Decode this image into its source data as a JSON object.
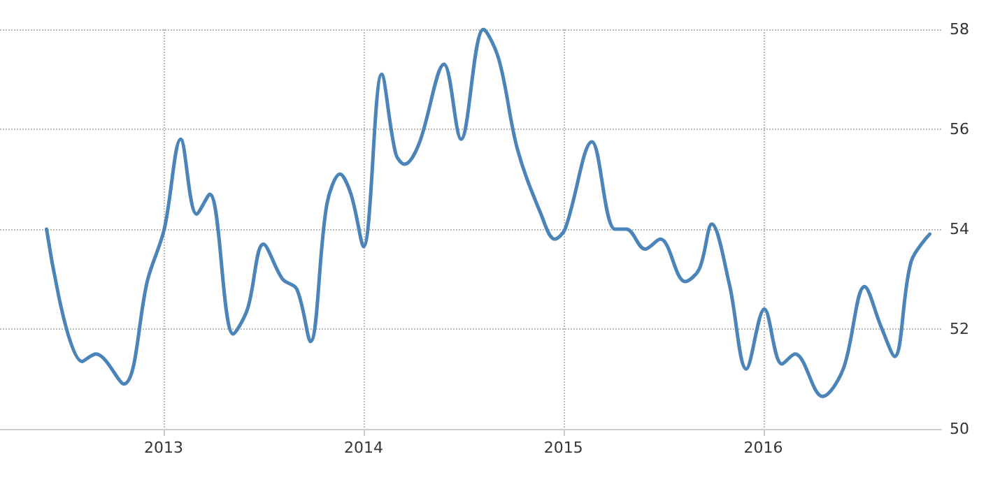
{
  "chart_data": {
    "type": "line",
    "x": [
      "2012-06-01",
      "2012-08-05",
      "2012-08-30",
      "2012-10-20",
      "2012-12-03",
      "2013-01-02",
      "2013-02-01",
      "2013-03-02",
      "2013-03-26",
      "2013-05-08",
      "2013-06-03",
      "2013-07-02",
      "2013-08-06",
      "2013-09-01",
      "2013-09-26",
      "2013-10-26",
      "2013-11-19",
      "2013-12-09",
      "2014-01-01",
      "2014-02-03",
      "2014-03-01",
      "2014-03-17",
      "2014-04-12",
      "2014-05-28",
      "2014-06-28",
      "2014-08-08",
      "2014-09-05",
      "2014-10-09",
      "2014-11-21",
      "2014-12-16",
      "2015-01-04",
      "2015-02-22",
      "2015-04-05",
      "2015-04-26",
      "2015-05-30",
      "2015-06-27",
      "2015-08-11",
      "2015-09-06",
      "2015-09-29",
      "2015-10-31",
      "2015-12-01",
      "2016-01-03",
      "2016-02-04",
      "2016-02-28",
      "2016-04-18",
      "2016-05-26",
      "2016-07-04",
      "2016-08-03",
      "2016-08-28",
      "2016-09-27",
      "2016-10-31"
    ],
    "series": [
      {
        "color": "#4a84b8",
        "values": [
          54.0,
          51.35,
          51.5,
          50.9,
          53.0,
          54.0,
          55.8,
          54.3,
          54.7,
          51.9,
          52.4,
          53.7,
          53.0,
          52.8,
          51.75,
          54.5,
          55.1,
          54.7,
          53.65,
          57.1,
          55.5,
          55.3,
          55.7,
          57.3,
          55.8,
          58.0,
          57.4,
          55.6,
          54.3,
          53.8,
          54.0,
          55.75,
          54.0,
          54.0,
          53.6,
          53.8,
          52.95,
          53.2,
          54.1,
          52.9,
          51.2,
          52.4,
          51.3,
          51.5,
          50.65,
          51.2,
          52.85,
          52.05,
          51.45,
          53.35,
          53.9
        ]
      }
    ],
    "xlim": [
      "2012-03-08",
      "2016-11-21"
    ],
    "xticks": [
      "2013",
      "2014",
      "2015",
      "2016"
    ],
    "ylim": [
      50,
      58
    ],
    "yticks": [
      50,
      52,
      54,
      56,
      58
    ],
    "grid": true,
    "marker": "none",
    "line_style": "solid"
  }
}
